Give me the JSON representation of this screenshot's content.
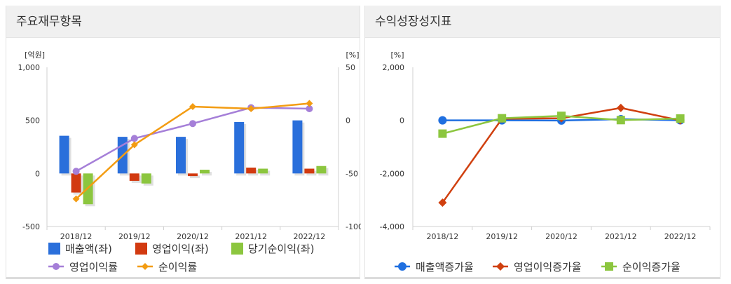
{
  "panels": {
    "left": {
      "title": "주요재무항목"
    },
    "right": {
      "title": "수익성장성지표"
    }
  },
  "chart_data": [
    {
      "type": "bar",
      "title": "주요재무항목",
      "categories": [
        "2018/12",
        "2019/12",
        "2020/12",
        "2021/12",
        "2022/12"
      ],
      "left_axis": {
        "unit": "[억원]",
        "ticks": [
          "1,000",
          "500",
          "0",
          "-500"
        ],
        "range": [
          -500,
          1000
        ]
      },
      "right_axis": {
        "unit": "[%]",
        "ticks": [
          "50",
          "0",
          "-50",
          "-100"
        ],
        "range": [
          -100,
          50
        ]
      },
      "bar_series": [
        {
          "name": "매출액(좌)",
          "color": "#2a6fdb",
          "values": [
            355,
            345,
            345,
            485,
            500
          ]
        },
        {
          "name": "영업이익(좌)",
          "color": "#d23a10",
          "values": [
            -180,
            -70,
            -25,
            55,
            45
          ]
        },
        {
          "name": "당기순이익(좌)",
          "color": "#8cc63f",
          "values": [
            -290,
            -95,
            35,
            45,
            70
          ]
        }
      ],
      "line_series": [
        {
          "name": "영업이익률",
          "color": "#a57fd8",
          "marker": "circle",
          "values": [
            -48,
            -17,
            -3,
            12,
            11
          ]
        },
        {
          "name": "순이익률",
          "color": "#f39c12",
          "marker": "diamond",
          "values": [
            -74,
            -23,
            13,
            11,
            16
          ]
        }
      ],
      "legend": "bottom",
      "grid": false
    },
    {
      "type": "line",
      "title": "수익성장성지표",
      "categories": [
        "2018/12",
        "2019/12",
        "2020/12",
        "2021/12",
        "2022/12"
      ],
      "y_axis": {
        "unit": "[%]",
        "ticks": [
          "2,000",
          "0",
          "-2,000",
          "-4,000"
        ],
        "range": [
          -4000,
          2000
        ]
      },
      "series": [
        {
          "name": "매출액증가율",
          "color": "#1f6fe0",
          "marker": "circle",
          "values": [
            0,
            0,
            -5,
            45,
            5
          ]
        },
        {
          "name": "영업이익증가율",
          "color": "#d0400f",
          "marker": "diamond",
          "values": [
            -3100,
            60,
            80,
            470,
            0
          ]
        },
        {
          "name": "순이익증가율",
          "color": "#8cc63f",
          "marker": "square",
          "values": [
            -500,
            80,
            170,
            10,
            70
          ]
        }
      ],
      "legend": "bottom",
      "grid": false
    }
  ]
}
